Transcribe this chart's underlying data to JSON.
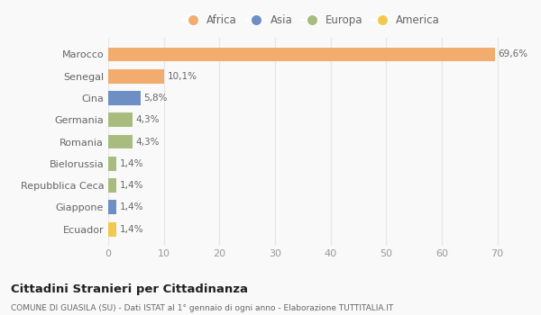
{
  "categories": [
    "Marocco",
    "Senegal",
    "Cina",
    "Germania",
    "Romania",
    "Bielorussia",
    "Repubblica Ceca",
    "Giappone",
    "Ecuador"
  ],
  "values": [
    69.6,
    10.1,
    5.8,
    4.3,
    4.3,
    1.4,
    1.4,
    1.4,
    1.4
  ],
  "labels": [
    "69,6%",
    "10,1%",
    "5,8%",
    "4,3%",
    "4,3%",
    "1,4%",
    "1,4%",
    "1,4%",
    "1,4%"
  ],
  "colors": [
    "#F2AC6E",
    "#F2AC6E",
    "#6E8FC4",
    "#A8BC80",
    "#A8BC80",
    "#A8BC80",
    "#A8BC80",
    "#6E8FC4",
    "#F2C84E"
  ],
  "legend_labels": [
    "Africa",
    "Asia",
    "Europa",
    "America"
  ],
  "legend_colors": [
    "#F2AC6E",
    "#6E8FC4",
    "#A8BC80",
    "#F2C84E"
  ],
  "xlim": [
    0,
    73
  ],
  "xticks": [
    0,
    10,
    20,
    30,
    40,
    50,
    60,
    70
  ],
  "title": "Cittadini Stranieri per Cittadinanza",
  "subtitle": "COMUNE DI GUASILA (SU) - Dati ISTAT al 1° gennaio di ogni anno - Elaborazione TUTTITALIA.IT",
  "bg_color": "#f9f9f9",
  "grid_color": "#e8e8e8",
  "bar_height": 0.65
}
